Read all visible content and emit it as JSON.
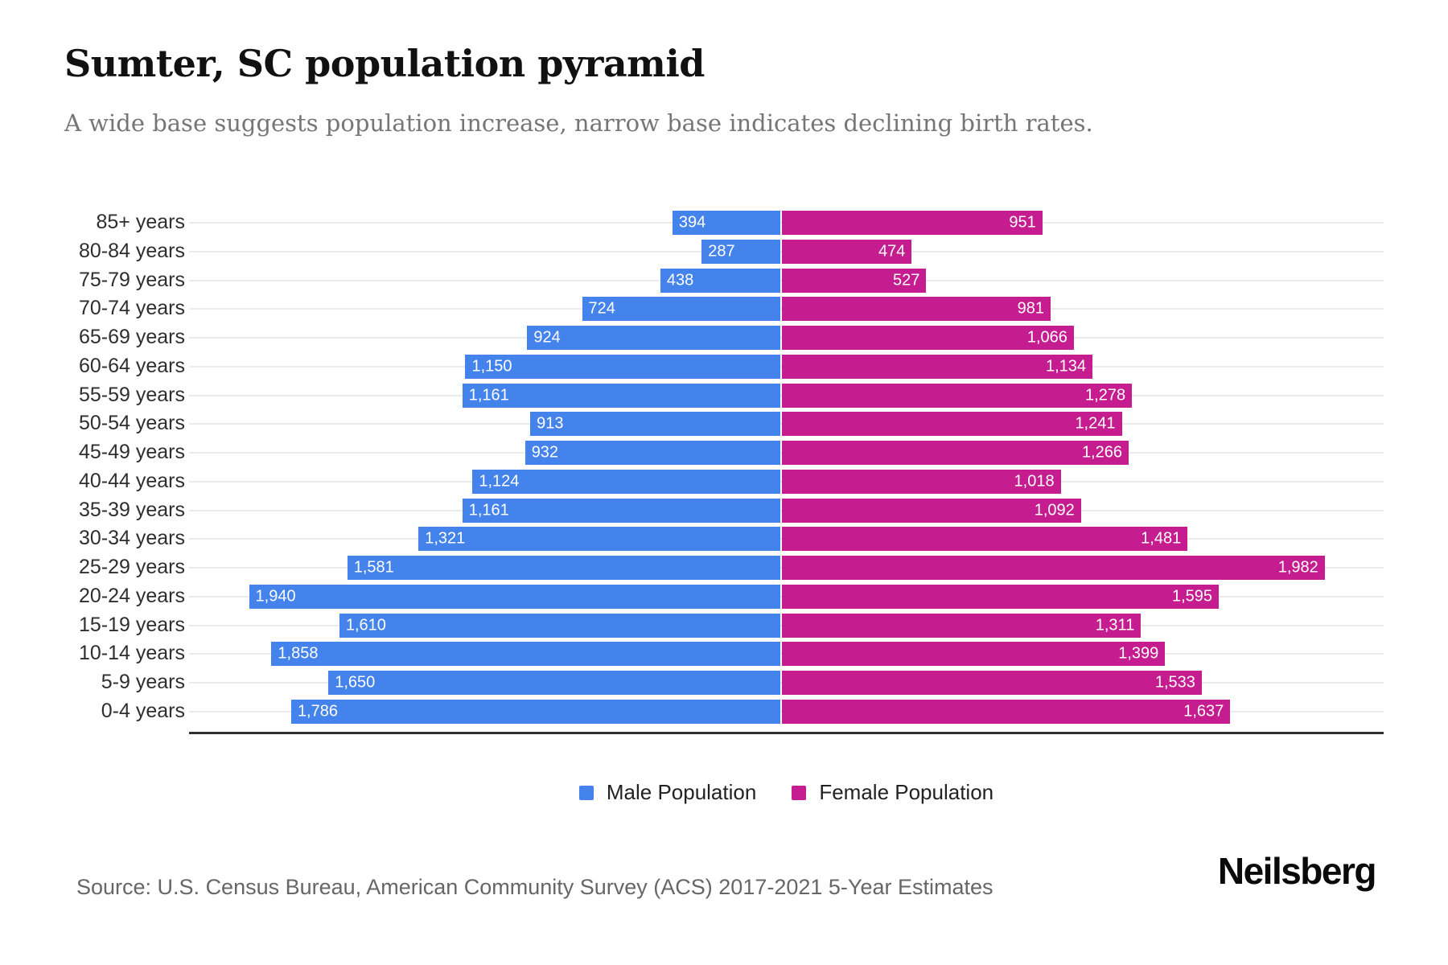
{
  "header": {
    "title": "Sumter, SC population pyramid",
    "subtitle": "A wide base suggests population increase, narrow base indicates declining birth rates."
  },
  "chart_data": {
    "type": "bar",
    "variant": "population-pyramid",
    "title": "Sumter, SC population pyramid",
    "categories": [
      "85+ years",
      "80-84 years",
      "75-79 years",
      "70-74 years",
      "65-69 years",
      "60-64 years",
      "55-59 years",
      "50-54 years",
      "45-49 years",
      "40-44 years",
      "35-39 years",
      "30-34 years",
      "25-29 years",
      "20-24 years",
      "15-19 years",
      "10-14 years",
      "5-9 years",
      "0-4 years"
    ],
    "series": [
      {
        "name": "Male Population",
        "color": "#4583ec",
        "values": [
          394,
          287,
          438,
          724,
          924,
          1150,
          1161,
          913,
          932,
          1124,
          1161,
          1321,
          1581,
          1940,
          1610,
          1858,
          1650,
          1786
        ]
      },
      {
        "name": "Female Population",
        "color": "#c51d8f",
        "values": [
          951,
          474,
          527,
          981,
          1066,
          1134,
          1278,
          1241,
          1266,
          1018,
          1092,
          1481,
          1982,
          1595,
          1311,
          1399,
          1533,
          1637
        ]
      }
    ],
    "xlim_per_side": [
      0,
      2200
    ],
    "grid": true,
    "legend_position": "bottom",
    "value_labels": "inside-end"
  },
  "legend": {
    "items": [
      {
        "label": "Male Population",
        "color": "#4583ec"
      },
      {
        "label": "Female Population",
        "color": "#c51d8f"
      }
    ]
  },
  "footer": {
    "source": "Source: U.S. Census Bureau, American Community Survey (ACS) 2017-2021 5-Year Estimates",
    "brand": "Neilsberg"
  }
}
